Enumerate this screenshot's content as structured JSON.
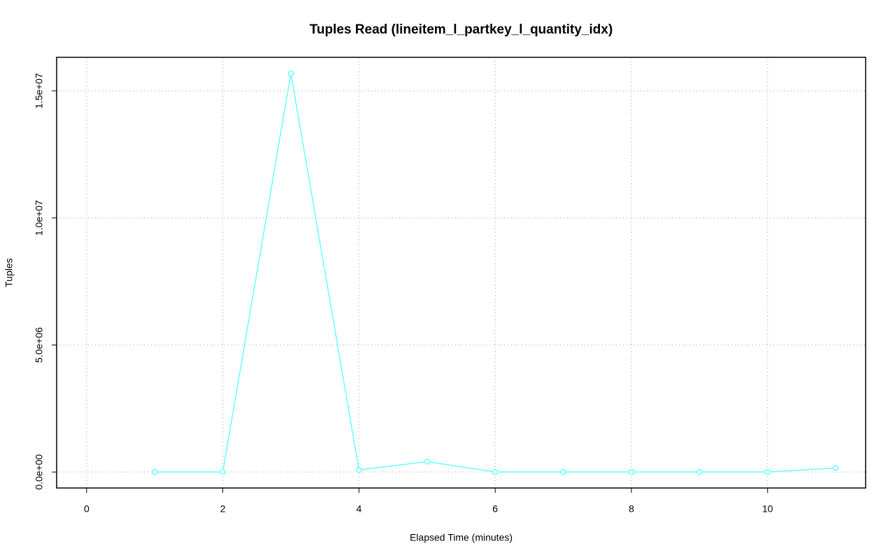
{
  "chart_data": {
    "type": "line",
    "title": "Tuples Read (lineitem_l_partkey_l_quantity_idx)",
    "x_label": "Elapsed Time (minutes)",
    "y_label": "Tuples",
    "x": [
      1,
      2,
      3,
      4,
      5,
      6,
      7,
      8,
      9,
      10,
      11
    ],
    "series": [
      {
        "color": "#66ffff",
        "values": [
          0,
          0,
          15690000,
          80000,
          410000,
          0,
          0,
          0,
          0,
          0,
          160000
        ]
      }
    ],
    "xlim": [
      -0.44,
      11.44
    ],
    "ylim": [
      -628000,
      16320000
    ],
    "xticks": [
      0,
      2,
      4,
      6,
      8,
      10
    ],
    "yticks": [
      {
        "value": 0,
        "label": "0.0e+00"
      },
      {
        "value": 5000000,
        "label": "5.0e+06"
      },
      {
        "value": 10000000,
        "label": "1.0e+07"
      },
      {
        "value": 15000000,
        "label": "1.5e+07"
      }
    ],
    "grid": true
  }
}
